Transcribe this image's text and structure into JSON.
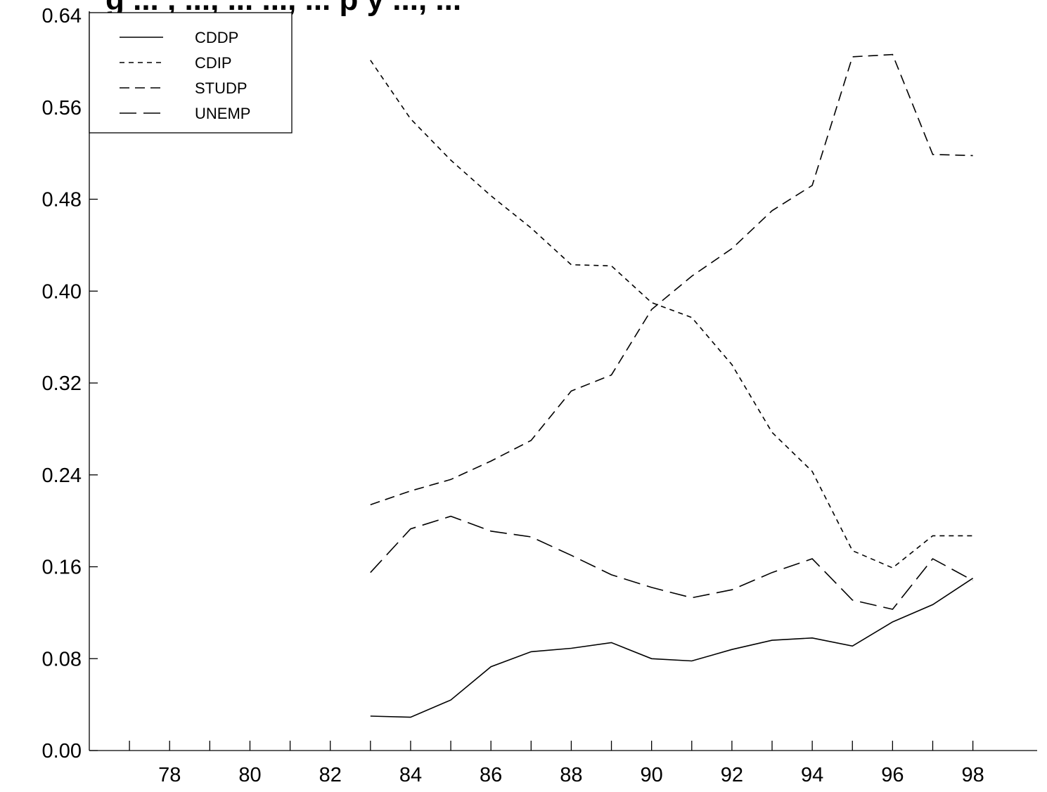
{
  "chart_data": {
    "type": "line",
    "title": "g ... , ..., ... ..., ... p y ..., ...",
    "xlabel": "",
    "ylabel": "",
    "xlim": [
      76,
      99.6
    ],
    "ylim": [
      0,
      0.64
    ],
    "x_ticks": [
      77,
      78,
      79,
      80,
      81,
      82,
      83,
      84,
      85,
      86,
      87,
      88,
      89,
      90,
      91,
      92,
      93,
      94,
      95,
      96,
      97,
      98
    ],
    "x_tick_labels": [
      "78",
      "80",
      "82",
      "84",
      "86",
      "88",
      "90",
      "92",
      "94",
      "96",
      "98"
    ],
    "y_tick_labels": [
      "0.00",
      "0.08",
      "0.16",
      "0.24",
      "0.32",
      "0.40",
      "0.48",
      "0.56",
      "0.64"
    ],
    "legend_position": "top-left",
    "grid": false,
    "x": [
      83,
      84,
      85,
      86,
      87,
      88,
      89,
      90,
      91,
      92,
      93,
      94,
      95,
      96,
      97,
      98
    ],
    "series": [
      {
        "name": "CDDP",
        "dash": "solid",
        "values": [
          0.03,
          0.029,
          0.044,
          0.073,
          0.086,
          0.089,
          0.094,
          0.08,
          0.078,
          0.088,
          0.096,
          0.098,
          0.091,
          0.112,
          0.127,
          0.15
        ]
      },
      {
        "name": "CDIP",
        "dash": "short-dash",
        "values": [
          0.601,
          0.55,
          0.514,
          0.483,
          0.455,
          0.423,
          0.422,
          0.39,
          0.377,
          0.336,
          0.277,
          0.243,
          0.174,
          0.159,
          0.187,
          0.187
        ]
      },
      {
        "name": "STUDP",
        "dash": "medium-dash",
        "values": [
          0.214,
          0.226,
          0.236,
          0.252,
          0.27,
          0.313,
          0.327,
          0.384,
          0.413,
          0.437,
          0.47,
          0.492,
          0.604,
          0.606,
          0.519,
          0.518
        ]
      },
      {
        "name": "UNEMP",
        "dash": "long-dash",
        "values": [
          0.155,
          0.193,
          0.204,
          0.191,
          0.186,
          0.17,
          0.153,
          0.142,
          0.133,
          0.14,
          0.155,
          0.167,
          0.131,
          0.123,
          0.167,
          0.148
        ]
      }
    ]
  }
}
